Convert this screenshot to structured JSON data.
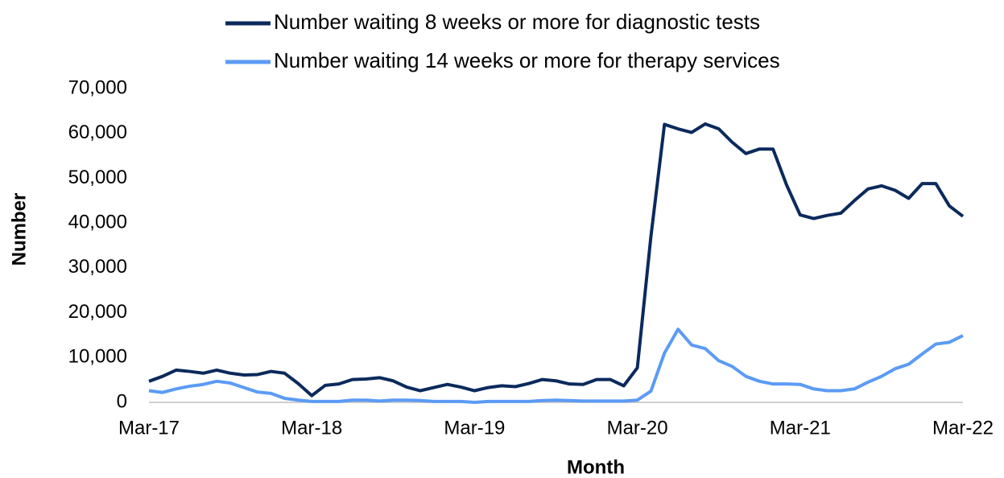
{
  "chart_data": {
    "type": "line",
    "x_label": "Month",
    "y_label": "Number",
    "categories": [
      "Mar-17",
      null,
      null,
      null,
      null,
      null,
      null,
      null,
      null,
      null,
      null,
      null,
      "Mar-18",
      null,
      null,
      null,
      null,
      null,
      null,
      null,
      null,
      null,
      null,
      null,
      "Mar-19",
      null,
      null,
      null,
      null,
      null,
      null,
      null,
      null,
      null,
      null,
      null,
      "Mar-20",
      null,
      null,
      null,
      null,
      null,
      null,
      null,
      null,
      null,
      null,
      null,
      "Mar-21",
      null,
      null,
      null,
      null,
      null,
      null,
      null,
      null,
      null,
      null,
      null,
      "Mar-22"
    ],
    "series": [
      {
        "name": "Number waiting 8 weeks or more for diagnostic tests",
        "color": "#0b2a5c",
        "values": [
          4700,
          5800,
          7200,
          6900,
          6500,
          7200,
          6500,
          6100,
          6200,
          6900,
          6500,
          4200,
          1500,
          3800,
          4100,
          5100,
          5200,
          5500,
          4800,
          3400,
          2600,
          3300,
          4000,
          3400,
          2600,
          3300,
          3700,
          3500,
          4200,
          5100,
          4800,
          4100,
          4000,
          5100,
          5100,
          3700,
          7700,
          37000,
          62000,
          61000,
          60200,
          62100,
          61000,
          58000,
          55500,
          56500,
          56500,
          48500,
          41800,
          41000,
          41700,
          42200,
          45000,
          47600,
          48300,
          47300,
          45500,
          48800,
          48800,
          43800,
          41500
        ]
      },
      {
        "name": "Number waiting 14 weeks or more for therapy services",
        "color": "#5b9bf5",
        "values": [
          2600,
          2200,
          3000,
          3600,
          4000,
          4700,
          4300,
          3300,
          2300,
          2000,
          900,
          500,
          200,
          200,
          200,
          500,
          500,
          300,
          500,
          500,
          400,
          200,
          200,
          200,
          0,
          200,
          200,
          200,
          200,
          400,
          500,
          400,
          300,
          300,
          300,
          300,
          500,
          2500,
          11000,
          16300,
          12800,
          12000,
          9300,
          8000,
          5800,
          4700,
          4100,
          4100,
          4000,
          3000,
          2600,
          2600,
          3000,
          4500,
          5800,
          7500,
          8500,
          10800,
          13000,
          13400,
          14900
        ]
      }
    ],
    "ylim": [
      0,
      70000
    ],
    "yticks": [
      0,
      {
        "value": 10000,
        "label": "10,000"
      },
      {
        "value": 20000,
        "label": "20,000"
      },
      {
        "value": 30000,
        "label": "30,000"
      },
      {
        "value": 40000,
        "label": "40,000"
      },
      {
        "value": 50000,
        "label": "50,000"
      },
      {
        "value": 60000,
        "label": "60,000"
      },
      {
        "value": 70000,
        "label": "70,000"
      }
    ],
    "grid": false,
    "legend": "top"
  }
}
